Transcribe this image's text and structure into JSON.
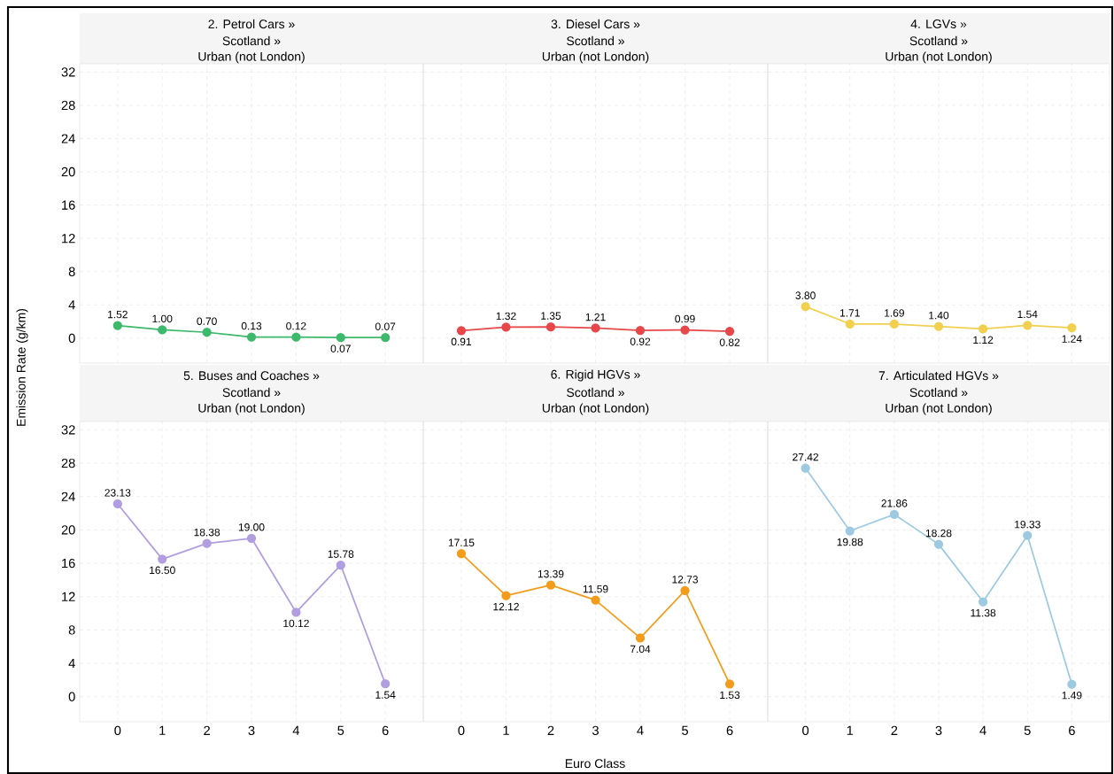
{
  "chart_data": [
    {
      "type": "line",
      "title": "2. Petrol Cars »",
      "subtitle": "Scotland »",
      "annotations": [
        "Urban (not London)"
      ],
      "ylabel": "Emission Rate (g/km)",
      "x": [
        0,
        1,
        2,
        3,
        4,
        5,
        6
      ],
      "xlim": [
        -0.85,
        6.85
      ],
      "ylim": [
        -3,
        33
      ],
      "xticks": [
        0,
        1,
        2,
        3,
        4,
        5,
        6
      ],
      "yticks": [
        0,
        4,
        8,
        12,
        16,
        20,
        24,
        28,
        32
      ],
      "tick_labels": "y",
      "grid": true,
      "marker": "circle",
      "line_style": "solid",
      "series": [
        {
          "color": "#3cb96b",
          "values": [
            1.52,
            1.0,
            0.7,
            0.13,
            0.12,
            0.07,
            0.07
          ],
          "value_labels": [
            "1.52",
            "1.00",
            "0.70",
            "0.13",
            "0.12",
            "0.07",
            "0.07"
          ]
        }
      ]
    },
    {
      "type": "line",
      "title": "3. Diesel Cars »",
      "subtitle": "Scotland »",
      "annotations": [
        "Urban (not London)"
      ],
      "x": [
        0,
        1,
        2,
        3,
        4,
        5,
        6
      ],
      "xlim": [
        -0.85,
        6.85
      ],
      "ylim": [
        -3,
        33
      ],
      "xticks": [
        0,
        1,
        2,
        3,
        4,
        5,
        6
      ],
      "yticks": [
        0,
        4,
        8,
        12,
        16,
        20,
        24,
        28,
        32
      ],
      "tick_labels": false,
      "grid": true,
      "marker": "circle",
      "line_style": "solid",
      "series": [
        {
          "color": "#e8474a",
          "values": [
            0.91,
            1.32,
            1.35,
            1.21,
            0.92,
            0.99,
            0.82
          ],
          "value_labels": [
            "0.91",
            "1.32",
            "1.35",
            "1.21",
            "0.92",
            "0.99",
            "0.82"
          ]
        }
      ]
    },
    {
      "type": "line",
      "title": "4. LGVs »",
      "subtitle": "Scotland »",
      "annotations": [
        "Urban (not London)"
      ],
      "x": [
        0,
        1,
        2,
        3,
        4,
        5,
        6
      ],
      "xlim": [
        -0.85,
        6.85
      ],
      "ylim": [
        -3,
        33
      ],
      "xticks": [
        0,
        1,
        2,
        3,
        4,
        5,
        6
      ],
      "yticks": [
        0,
        4,
        8,
        12,
        16,
        20,
        24,
        28,
        32
      ],
      "tick_labels": false,
      "grid": true,
      "marker": "circle",
      "line_style": "solid",
      "series": [
        {
          "color": "#f2d04f",
          "values": [
            3.8,
            1.71,
            1.69,
            1.4,
            1.12,
            1.54,
            1.24
          ],
          "value_labels": [
            "3.80",
            "1.71",
            "1.69",
            "1.40",
            "1.12",
            "1.54",
            "1.24"
          ]
        }
      ]
    },
    {
      "type": "line",
      "title": "5. Buses and Coaches »",
      "subtitle": "Scotland »",
      "annotations": [
        "Urban (not London)"
      ],
      "x": [
        0,
        1,
        2,
        3,
        4,
        5,
        6
      ],
      "xlim": [
        -0.85,
        6.85
      ],
      "ylim": [
        -3,
        33
      ],
      "xticks": [
        0,
        1,
        2,
        3,
        4,
        5,
        6
      ],
      "yticks": [
        0,
        4,
        8,
        12,
        16,
        20,
        24,
        28,
        32
      ],
      "grid": true,
      "marker": "circle",
      "line_style": "solid",
      "series": [
        {
          "color": "#b09ee0",
          "values": [
            23.13,
            16.5,
            18.38,
            19.0,
            10.12,
            15.78,
            1.54
          ],
          "value_labels": [
            "23.13",
            "16.50",
            "18.38",
            "19.00",
            "10.12",
            "15.78",
            "1.54"
          ]
        }
      ]
    },
    {
      "type": "line",
      "title": "6. Rigid HGVs »",
      "subtitle": "Scotland »",
      "annotations": [
        "Urban (not London)"
      ],
      "xlabel": "Euro Class",
      "x": [
        0,
        1,
        2,
        3,
        4,
        5,
        6
      ],
      "xlim": [
        -0.85,
        6.85
      ],
      "ylim": [
        -3,
        33
      ],
      "xticks": [
        0,
        1,
        2,
        3,
        4,
        5,
        6
      ],
      "yticks": [
        0,
        4,
        8,
        12,
        16,
        20,
        24,
        28,
        32
      ],
      "tick_labels": "x",
      "grid": true,
      "marker": "circle",
      "line_style": "solid",
      "series": [
        {
          "color": "#f39c1b",
          "values": [
            17.15,
            12.12,
            13.39,
            11.59,
            7.04,
            12.73,
            1.53
          ],
          "value_labels": [
            "17.15",
            "12.12",
            "13.39",
            "11.59",
            "7.04",
            "12.73",
            "1.53"
          ]
        }
      ]
    },
    {
      "type": "line",
      "title": "7. Articulated HGVs »",
      "subtitle": "Scotland »",
      "annotations": [
        "Urban (not London)"
      ],
      "x": [
        0,
        1,
        2,
        3,
        4,
        5,
        6
      ],
      "xlim": [
        -0.85,
        6.85
      ],
      "ylim": [
        -3,
        33
      ],
      "xticks": [
        0,
        1,
        2,
        3,
        4,
        5,
        6
      ],
      "yticks": [
        0,
        4,
        8,
        12,
        16,
        20,
        24,
        28,
        32
      ],
      "tick_labels": "x",
      "grid": true,
      "marker": "circle",
      "line_style": "solid",
      "series": [
        {
          "color": "#9ecae1",
          "values": [
            27.42,
            19.88,
            21.86,
            18.28,
            11.38,
            19.33,
            1.49
          ],
          "value_labels": [
            "27.42",
            "19.88",
            "21.86",
            "18.28",
            "11.38",
            "19.33",
            "1.49"
          ]
        }
      ]
    }
  ]
}
